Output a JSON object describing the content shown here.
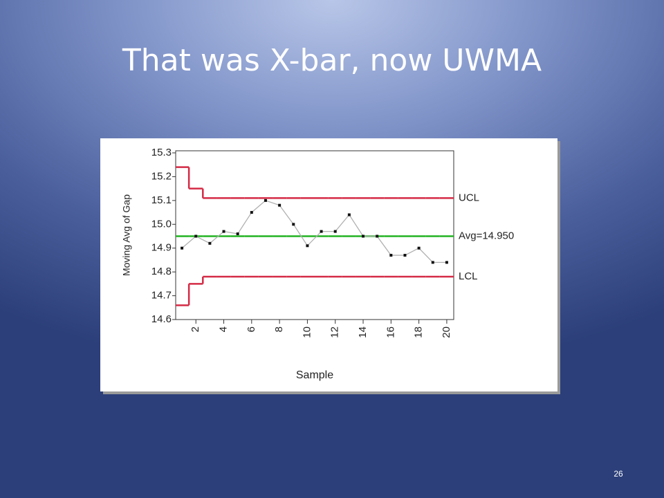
{
  "slide": {
    "title": "That was X-bar, now UWMA",
    "page_number": "26"
  },
  "chart_data": {
    "type": "control",
    "x_label": "Sample",
    "y_label": "Moving Avg of Gap",
    "x": [
      1,
      2,
      3,
      4,
      5,
      6,
      7,
      8,
      9,
      10,
      11,
      12,
      13,
      14,
      15,
      16,
      17,
      18,
      19,
      20
    ],
    "series": [
      {
        "name": "UCL",
        "color": "#d42a45",
        "values": [
          15.24,
          15.15,
          15.11,
          15.11,
          15.11,
          15.11,
          15.11,
          15.11,
          15.11,
          15.11,
          15.11,
          15.11,
          15.11,
          15.11,
          15.11,
          15.11,
          15.11,
          15.11,
          15.11,
          15.11
        ]
      },
      {
        "name": "Avg=14.950",
        "color": "#22b422",
        "values": [
          14.95,
          14.95,
          14.95,
          14.95,
          14.95,
          14.95,
          14.95,
          14.95,
          14.95,
          14.95,
          14.95,
          14.95,
          14.95,
          14.95,
          14.95,
          14.95,
          14.95,
          14.95,
          14.95,
          14.95
        ]
      },
      {
        "name": "LCL",
        "color": "#d42a45",
        "values": [
          14.66,
          14.75,
          14.78,
          14.78,
          14.78,
          14.78,
          14.78,
          14.78,
          14.78,
          14.78,
          14.78,
          14.78,
          14.78,
          14.78,
          14.78,
          14.78,
          14.78,
          14.78,
          14.78,
          14.78
        ]
      },
      {
        "name": "Moving Avg",
        "color": "#b0b0b0",
        "values": [
          14.9,
          14.95,
          14.92,
          14.97,
          14.96,
          15.05,
          15.1,
          15.08,
          15.0,
          14.91,
          14.97,
          14.97,
          15.04,
          14.95,
          14.95,
          14.87,
          14.87,
          14.9,
          14.84,
          14.84
        ]
      }
    ],
    "xlim": [
      0.55,
      20.5
    ],
    "xticks": [
      2,
      4,
      6,
      8,
      10,
      12,
      14,
      16,
      18,
      20
    ],
    "ylim": [
      14.6,
      15.3
    ],
    "yticks": [
      14.6,
      14.7,
      14.8,
      14.9,
      {
        "value": 15,
        "label": "15.0"
      },
      15.1,
      15.2,
      15.3
    ]
  }
}
